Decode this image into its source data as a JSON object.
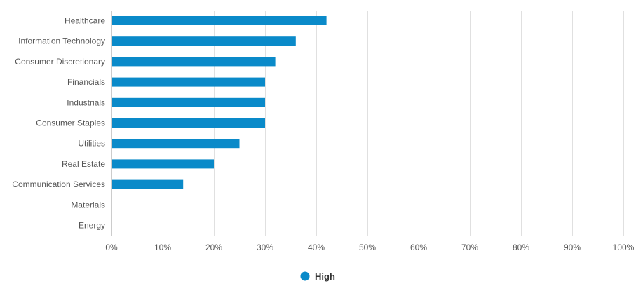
{
  "chart_data": {
    "type": "bar",
    "orientation": "horizontal",
    "categories": [
      "Healthcare",
      "Information Technology",
      "Consumer Discretionary",
      "Financials",
      "Industrials",
      "Consumer Staples",
      "Utilities",
      "Real Estate",
      "Communication Services",
      "Materials",
      "Energy"
    ],
    "series": [
      {
        "name": "High",
        "values": [
          42,
          36,
          32,
          30,
          30,
          30,
          25,
          20,
          14,
          0,
          0
        ],
        "color": "#0a8ac9"
      }
    ],
    "xlim": [
      0,
      100
    ],
    "x_ticks": [
      "0%",
      "10%",
      "20%",
      "30%",
      "40%",
      "50%",
      "60%",
      "70%",
      "80%",
      "90%",
      "100%"
    ],
    "x_tick_values": [
      0,
      10,
      20,
      30,
      40,
      50,
      60,
      70,
      80,
      90,
      100
    ],
    "title": "",
    "xlabel": "",
    "ylabel": "",
    "grid": "vertical",
    "legend_position": "bottom-center",
    "gridline_color": "#e0e0e0"
  }
}
